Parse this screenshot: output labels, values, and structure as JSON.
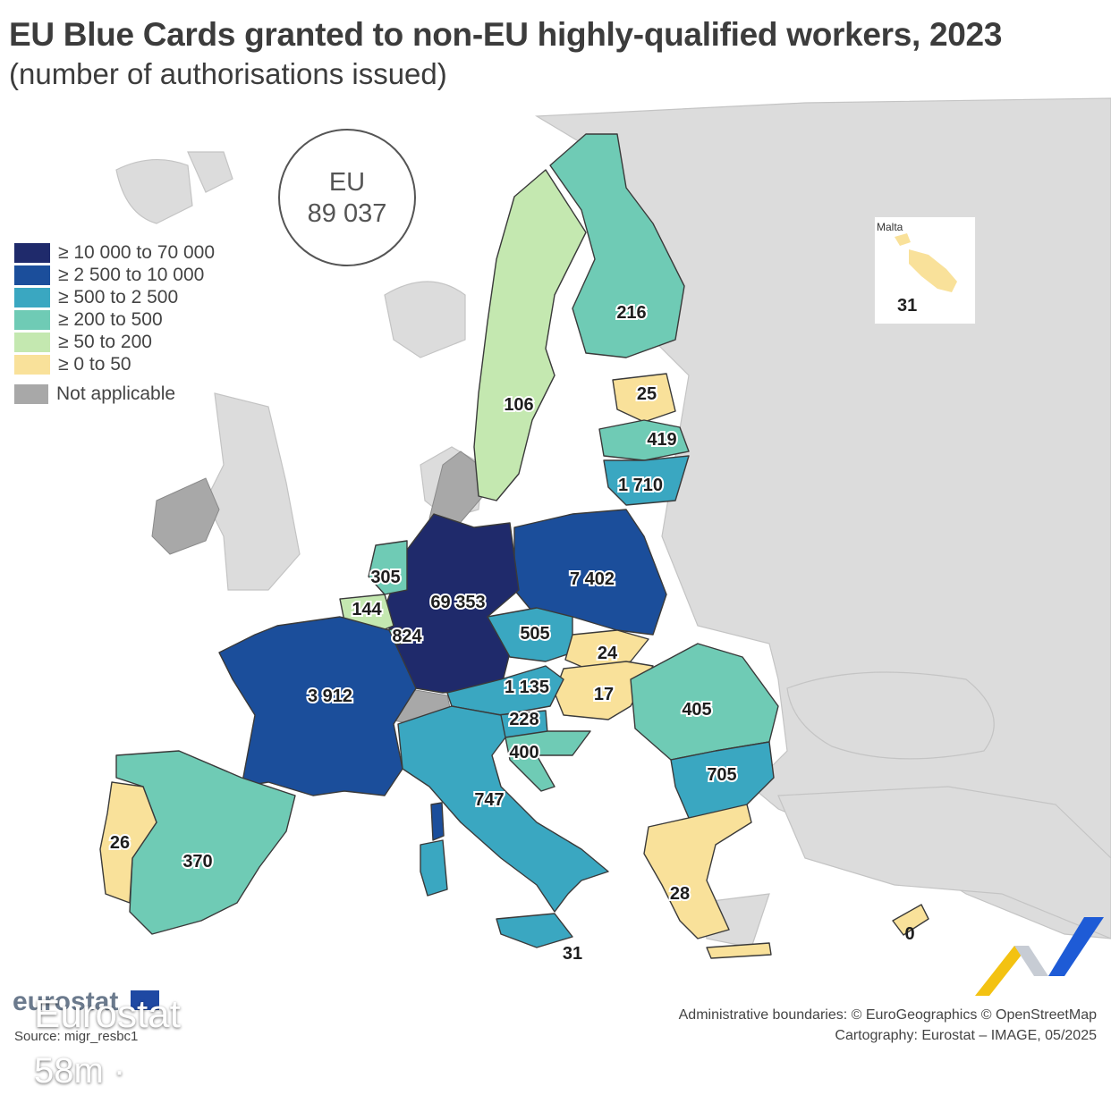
{
  "title": "EU Blue Cards granted to non-EU highly-qualified workers, 2023",
  "subtitle": "(number of authorisations issued)",
  "eu_total": {
    "label": "EU",
    "value": "89 037"
  },
  "legend": [
    {
      "label": "≥ 10 000 to 70 000",
      "color": "#1f2a6b"
    },
    {
      "label": "≥ 2 500 to 10 000",
      "color": "#1b4e9b"
    },
    {
      "label": "≥ 500 to 2 500",
      "color": "#3aa7c1"
    },
    {
      "label": "≥ 200 to 500",
      "color": "#6fcbb5"
    },
    {
      "label": "≥ 50 to 200",
      "color": "#c4e8b0"
    },
    {
      "label": "≥ 0 to 50",
      "color": "#f9e19a"
    },
    {
      "label": "Not applicable",
      "color": "#a8a8a8"
    }
  ],
  "values": {
    "finland": "216",
    "sweden": "106",
    "estonia": "25",
    "latvia": "419",
    "lithuania": "1 710",
    "poland": "7 402",
    "germany": "69 353",
    "netherlands": "305",
    "belgium": "144",
    "luxembourg": "824",
    "czechia": "505",
    "slovakia": "24",
    "hungary": "17",
    "austria": "1 135",
    "slovenia": "228",
    "croatia": "400",
    "romania": "405",
    "bulgaria": "705",
    "france": "3 912",
    "italy": "747",
    "spain": "370",
    "portugal": "26",
    "greece": "28",
    "cyprus": "0",
    "malta_south": "31"
  },
  "malta": {
    "name": "Malta",
    "value": "31"
  },
  "footer": {
    "logo_text": "eurostat",
    "source": "Source: migr_resbc1",
    "credits_line1": "Administrative boundaries: © EuroGeographics © OpenStreetMap",
    "credits_line2": "Cartography: Eurostat – IMAGE, 05/2025"
  },
  "overlay": {
    "name": "Eurostat",
    "time": "58m ·"
  }
}
